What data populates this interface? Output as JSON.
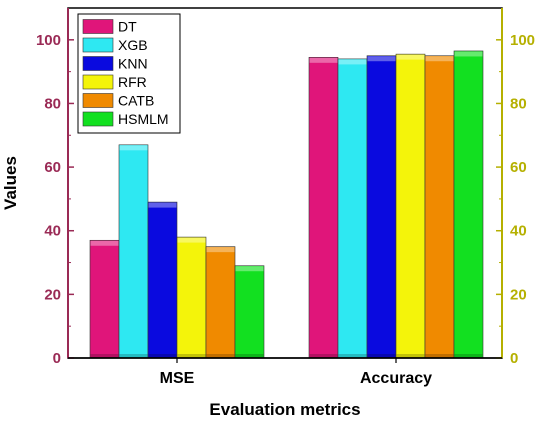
{
  "chart_data": {
    "type": "bar",
    "xlabel": "Evaluation metrics",
    "ylabel": "Values",
    "categories": [
      "MSE",
      "Accuracy"
    ],
    "ylim": [
      0,
      110
    ],
    "y_ticks": [
      0,
      20,
      40,
      60,
      80,
      100
    ],
    "y2_ticks": [
      0,
      20,
      40,
      60,
      80,
      100
    ],
    "legend_position": "top-left",
    "grid": false,
    "colors": {
      "left_axis": "#9a2a55",
      "right_axis": "#b5b000"
    },
    "series": [
      {
        "name": "DT",
        "color": "#e0157a",
        "values": [
          37,
          94.5
        ]
      },
      {
        "name": "XGB",
        "color": "#2ee8f2",
        "values": [
          67,
          94
        ]
      },
      {
        "name": "KNN",
        "color": "#0a0adf",
        "values": [
          49,
          95
        ]
      },
      {
        "name": "RFR",
        "color": "#f4f40a",
        "values": [
          38,
          95.5
        ]
      },
      {
        "name": "CATB",
        "color": "#f08a00",
        "values": [
          35,
          95
        ]
      },
      {
        "name": "HSMLM",
        "color": "#12e020",
        "values": [
          29,
          96.5
        ]
      }
    ]
  }
}
